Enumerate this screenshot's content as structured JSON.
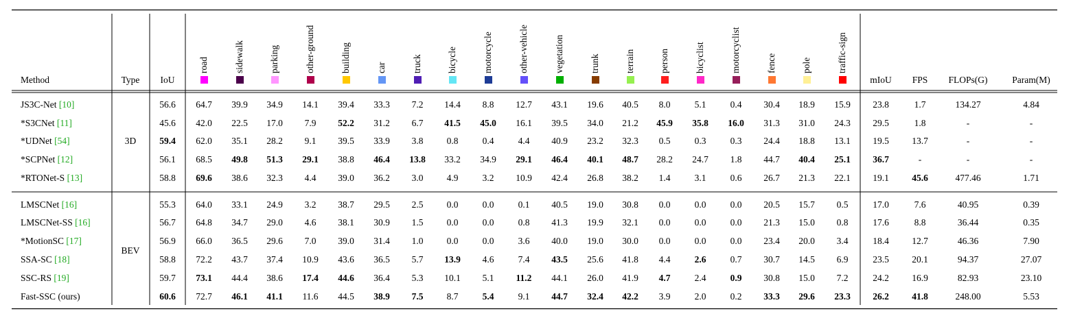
{
  "table": {
    "columns": {
      "method": "Method",
      "type": "Type",
      "iou": "IoU",
      "classes": [
        {
          "name": "road",
          "color": "#ff00ff"
        },
        {
          "name": "sidewalk",
          "color": "#4b004b"
        },
        {
          "name": "parking",
          "color": "#ff96ff"
        },
        {
          "name": "other-ground",
          "color": "#af004b"
        },
        {
          "name": "building",
          "color": "#ffc800"
        },
        {
          "name": "car",
          "color": "#6496f5"
        },
        {
          "name": "truck",
          "color": "#501eb4"
        },
        {
          "name": "bicycle",
          "color": "#64e6f5"
        },
        {
          "name": "motorcycle",
          "color": "#1e3c96"
        },
        {
          "name": "other-vehicle",
          "color": "#6450fa"
        },
        {
          "name": "vegetation",
          "color": "#00af00"
        },
        {
          "name": "trunk",
          "color": "#873c00"
        },
        {
          "name": "terrain",
          "color": "#96f050"
        },
        {
          "name": "person",
          "color": "#ff1e1e"
        },
        {
          "name": "bicyclist",
          "color": "#ff28c8"
        },
        {
          "name": "motorcyclist",
          "color": "#961e5a"
        },
        {
          "name": "fence",
          "color": "#ff7832"
        },
        {
          "name": "pole",
          "color": "#fff096"
        },
        {
          "name": "traffic-sign",
          "color": "#ff0000"
        }
      ],
      "metrics": [
        "mIoU",
        "FPS",
        "FLOPs(G)",
        "Param(M)"
      ]
    },
    "groups": [
      {
        "type": "3D",
        "rows": [
          {
            "name": "JS3C-Net ",
            "ref": "[10]",
            "iou": "56.6",
            "classes": [
              "64.7",
              "39.9",
              "34.9",
              "14.1",
              "39.4",
              "33.3",
              "7.2",
              "14.4",
              "8.8",
              "12.7",
              "43.1",
              "19.6",
              "40.5",
              "8.0",
              "5.1",
              "0.4",
              "30.4",
              "18.9",
              "15.9"
            ],
            "metrics": [
              "23.8",
              "1.7",
              "134.27",
              "4.84"
            ],
            "bold": []
          },
          {
            "name": "*S3CNet ",
            "ref": "[11]",
            "iou": "45.6",
            "classes": [
              "42.0",
              "22.5",
              "17.0",
              "7.9",
              "52.2",
              "31.2",
              "6.7",
              "41.5",
              "45.0",
              "16.1",
              "39.5",
              "34.0",
              "21.2",
              "45.9",
              "35.8",
              "16.0",
              "31.3",
              "31.0",
              "24.3"
            ],
            "metrics": [
              "29.5",
              "1.8",
              "-",
              "-"
            ],
            "bold": [
              "c4",
              "c7",
              "c8",
              "c13",
              "c14",
              "c15"
            ]
          },
          {
            "name": "*UDNet ",
            "ref": "[54]",
            "iou": "59.4",
            "classes": [
              "62.0",
              "35.1",
              "28.2",
              "9.1",
              "39.5",
              "33.9",
              "3.8",
              "0.8",
              "0.4",
              "4.4",
              "40.9",
              "23.2",
              "32.3",
              "0.5",
              "0.3",
              "0.3",
              "24.4",
              "18.8",
              "13.1"
            ],
            "metrics": [
              "19.5",
              "13.7",
              "-",
              "-"
            ],
            "bold": [
              "iou"
            ]
          },
          {
            "name": "*SCPNet ",
            "ref": "[12]",
            "iou": "56.1",
            "classes": [
              "68.5",
              "49.8",
              "51.3",
              "29.1",
              "38.8",
              "46.4",
              "13.8",
              "33.2",
              "34.9",
              "29.1",
              "46.4",
              "40.1",
              "48.7",
              "28.2",
              "24.7",
              "1.8",
              "44.7",
              "40.4",
              "25.1"
            ],
            "metrics": [
              "36.7",
              "-",
              "-",
              "-"
            ],
            "bold": [
              "c1",
              "c2",
              "c3",
              "c5",
              "c6",
              "c9",
              "c10",
              "c11",
              "c12",
              "c17",
              "c18",
              "m0"
            ]
          },
          {
            "name": "*RTONet-S ",
            "ref": "[13]",
            "iou": "58.8",
            "classes": [
              "69.6",
              "38.6",
              "32.3",
              "4.4",
              "39.0",
              "36.2",
              "3.0",
              "4.9",
              "3.2",
              "10.9",
              "42.4",
              "26.8",
              "38.2",
              "1.4",
              "3.1",
              "0.6",
              "26.7",
              "21.3",
              "22.1"
            ],
            "metrics": [
              "19.1",
              "45.6",
              "477.46",
              "1.71"
            ],
            "bold": [
              "c0",
              "m1"
            ]
          }
        ]
      },
      {
        "type": "BEV",
        "rows": [
          {
            "name": "LMSCNet ",
            "ref": "[16]",
            "iou": "55.3",
            "classes": [
              "64.0",
              "33.1",
              "24.9",
              "3.2",
              "38.7",
              "29.5",
              "2.5",
              "0.0",
              "0.0",
              "0.1",
              "40.5",
              "19.0",
              "30.8",
              "0.0",
              "0.0",
              "0.0",
              "20.5",
              "15.7",
              "0.5"
            ],
            "metrics": [
              "17.0",
              "7.6",
              "40.95",
              "0.39"
            ],
            "bold": []
          },
          {
            "name": "LMSCNet-SS ",
            "ref": "[16]",
            "iou": "56.7",
            "classes": [
              "64.8",
              "34.7",
              "29.0",
              "4.6",
              "38.1",
              "30.9",
              "1.5",
              "0.0",
              "0.0",
              "0.8",
              "41.3",
              "19.9",
              "32.1",
              "0.0",
              "0.0",
              "0.0",
              "21.3",
              "15.0",
              "0.8"
            ],
            "metrics": [
              "17.6",
              "8.8",
              "36.44",
              "0.35"
            ],
            "bold": []
          },
          {
            "name": "*MotionSC ",
            "ref": "[17]",
            "iou": "56.9",
            "classes": [
              "66.0",
              "36.5",
              "29.6",
              "7.0",
              "39.0",
              "31.4",
              "1.0",
              "0.0",
              "0.0",
              "3.6",
              "40.0",
              "19.0",
              "30.0",
              "0.0",
              "0.0",
              "0.0",
              "23.4",
              "20.0",
              "3.4"
            ],
            "metrics": [
              "18.4",
              "12.7",
              "46.36",
              "7.90"
            ],
            "bold": []
          },
          {
            "name": "SSA-SC ",
            "ref": "[18]",
            "iou": "58.8",
            "classes": [
              "72.2",
              "43.7",
              "37.4",
              "10.9",
              "43.6",
              "36.5",
              "5.7",
              "13.9",
              "4.6",
              "7.4",
              "43.5",
              "25.6",
              "41.8",
              "4.4",
              "2.6",
              "0.7",
              "30.7",
              "14.5",
              "6.9"
            ],
            "metrics": [
              "23.5",
              "20.1",
              "94.37",
              "27.07"
            ],
            "bold": [
              "c7",
              "c10",
              "c14"
            ]
          },
          {
            "name": "SSC-RS ",
            "ref": "[19]",
            "iou": "59.7",
            "classes": [
              "73.1",
              "44.4",
              "38.6",
              "17.4",
              "44.6",
              "36.4",
              "5.3",
              "10.1",
              "5.1",
              "11.2",
              "44.1",
              "26.0",
              "41.9",
              "4.7",
              "2.4",
              "0.9",
              "30.8",
              "15.0",
              "7.2"
            ],
            "metrics": [
              "24.2",
              "16.9",
              "82.93",
              "23.10"
            ],
            "bold": [
              "c0",
              "c3",
              "c4",
              "c9",
              "c13",
              "c15"
            ]
          },
          {
            "name": "Fast-SSC (ours)",
            "ref": "",
            "iou": "60.6",
            "classes": [
              "72.7",
              "46.1",
              "41.1",
              "11.6",
              "44.5",
              "38.9",
              "7.5",
              "8.7",
              "5.4",
              "9.1",
              "44.7",
              "32.4",
              "42.2",
              "3.9",
              "2.0",
              "0.2",
              "33.3",
              "29.6",
              "23.3"
            ],
            "metrics": [
              "26.2",
              "41.8",
              "248.00",
              "5.53"
            ],
            "bold": [
              "iou",
              "c1",
              "c2",
              "c5",
              "c6",
              "c8",
              "c10",
              "c11",
              "c12",
              "c16",
              "c17",
              "c18",
              "m0",
              "m1"
            ]
          }
        ]
      }
    ]
  }
}
